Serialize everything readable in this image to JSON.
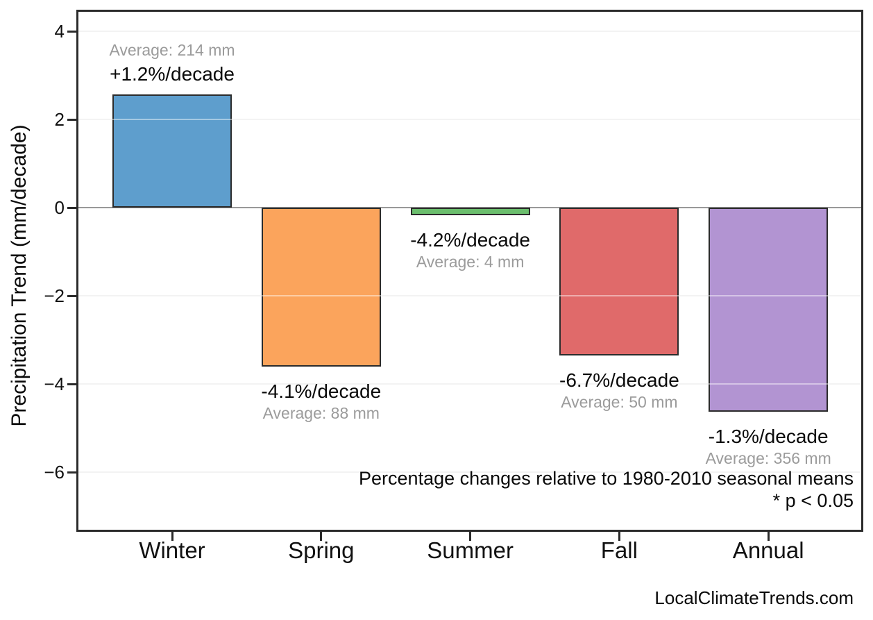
{
  "chart_data": {
    "type": "bar",
    "title": "",
    "xlabel": "",
    "ylabel": "Precipitation Trend (mm/decade)",
    "categories": [
      "Winter",
      "Spring",
      "Summer",
      "Fall",
      "Annual"
    ],
    "values": [
      2.57,
      -3.61,
      -0.17,
      -3.35,
      -4.63
    ],
    "bar_colors": [
      "#5E9ECD",
      "#FBA45C",
      "#6BBE6D",
      "#E06A6A",
      "#B294D2"
    ],
    "bar_edge_color": "#2B2B2B",
    "y_ticks": {
      "values": [
        4,
        2,
        0,
        -2,
        -4,
        -6
      ],
      "labels": [
        "4",
        "2",
        "0",
        "−2",
        "−4",
        "−6"
      ]
    },
    "ylim": [
      -7.4,
      4.45
    ],
    "grid": true,
    "legend": "none",
    "zero_line_color": "#999999",
    "annotations": [
      {
        "category": "Winter",
        "percent": "+1.2%/decade",
        "average": "Average: 214 mm",
        "placement": "above"
      },
      {
        "category": "Spring",
        "percent": "-4.1%/decade",
        "average": "Average: 88 mm",
        "placement": "below"
      },
      {
        "category": "Summer",
        "percent": "-4.2%/decade",
        "average": "Average: 4 mm",
        "placement": "below"
      },
      {
        "category": "Fall",
        "percent": "-6.7%/decade",
        "average": "Average: 50 mm",
        "placement": "below"
      },
      {
        "category": "Annual",
        "percent": "-1.3%/decade",
        "average": "Average: 356 mm",
        "placement": "below"
      }
    ],
    "footnotes": [
      "Percentage changes relative to 1980-2010 seasonal means",
      "* p < 0.05"
    ],
    "watermark": "LocalClimateTrends.com"
  }
}
